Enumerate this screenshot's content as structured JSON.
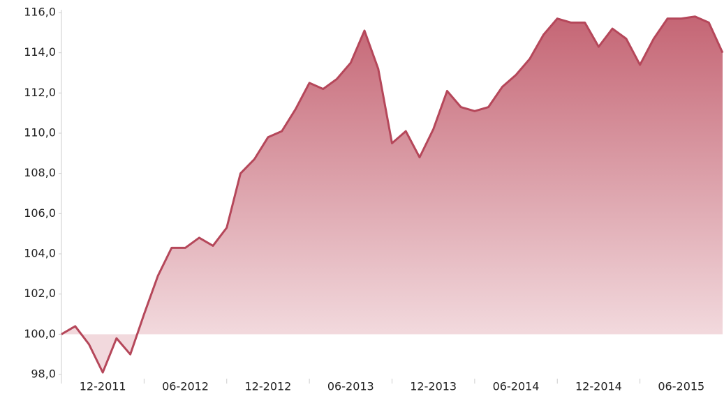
{
  "chart_data": {
    "type": "area",
    "categories": [
      null,
      null,
      null,
      "12-2011",
      null,
      null,
      null,
      null,
      null,
      "06-2012",
      null,
      null,
      null,
      null,
      null,
      "12-2012",
      null,
      null,
      null,
      null,
      null,
      "06-2013",
      null,
      null,
      null,
      null,
      null,
      "12-2013",
      null,
      null,
      null,
      null,
      null,
      "06-2014",
      null,
      null,
      null,
      null,
      null,
      "12-2014",
      null,
      null,
      null,
      null,
      null,
      "06-2015",
      null,
      null,
      null
    ],
    "series": [
      {
        "color": "#b5475a",
        "values": [
          100.0,
          100.4,
          99.5,
          98.1,
          99.8,
          99.0,
          101.0,
          102.9,
          104.3,
          104.3,
          104.8,
          104.4,
          105.3,
          108.0,
          108.7,
          109.8,
          110.1,
          111.2,
          112.5,
          112.2,
          112.7,
          113.5,
          115.1,
          113.2,
          109.5,
          110.1,
          108.8,
          110.2,
          112.1,
          111.3,
          111.1,
          111.3,
          112.3,
          112.9,
          113.7,
          114.9,
          115.7,
          115.5,
          115.5,
          114.3,
          115.2,
          114.7,
          113.4,
          114.7,
          115.7,
          115.7,
          115.8,
          115.5,
          114.0
        ]
      }
    ],
    "area_baseline": 100,
    "ylim": [
      98,
      116
    ],
    "yticks": [
      {
        "value": 98,
        "label": "98,0"
      },
      {
        "value": 100,
        "label": "100,0"
      },
      {
        "value": 102,
        "label": "102,0"
      },
      {
        "value": 104,
        "label": "104,0"
      },
      {
        "value": 106,
        "label": "106,0"
      },
      {
        "value": 108,
        "label": "108,0"
      },
      {
        "value": 110,
        "label": "110,0"
      },
      {
        "value": 112,
        "label": "112,0"
      },
      {
        "value": 114,
        "label": "114,0"
      },
      {
        "value": 116,
        "label": "116,0"
      }
    ]
  }
}
